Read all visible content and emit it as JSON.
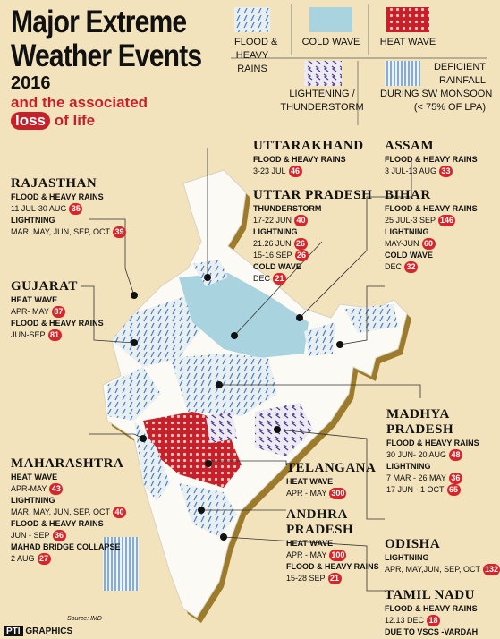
{
  "header": {
    "title_lines": [
      "Major Extreme",
      "Weather Events"
    ],
    "year": "2016",
    "subtitle": "and the associated",
    "loss": "loss",
    "of_life": "of life"
  },
  "legend": [
    {
      "lines": [
        "FLOOD &",
        "HEAVY",
        "RAINS"
      ]
    },
    {
      "lines": [
        "COLD WAVE"
      ]
    },
    {
      "lines": [
        "HEAT WAVE"
      ]
    },
    {
      "lines": [
        "LIGHTENING /",
        "THUNDERSTORM"
      ]
    },
    {
      "lines": [
        "DEFICIENT",
        "RAINFALL",
        "DURING SW MONSOON",
        "(< 75% OF LPA)"
      ]
    }
  ],
  "regions": [
    {
      "name_lines": [
        "RAJASTHAN"
      ],
      "events": [
        {
          "label": "FLOOD & HEAVY RAINS",
          "entries": [
            {
              "date": "11 JUL-30 AUG",
              "deaths": 35
            }
          ]
        },
        {
          "label": "LIGHTNING",
          "entries": [
            {
              "date": "MAR, MAY, JUN, SEP, OCT",
              "deaths": 39
            }
          ]
        }
      ]
    },
    {
      "name_lines": [
        "GUJARAT"
      ],
      "events": [
        {
          "label": "HEAT WAVE",
          "entries": [
            {
              "date": "APR- MAY",
              "deaths": 87
            }
          ]
        },
        {
          "label": "FLOOD & HEAVY RAINS",
          "entries": [
            {
              "date": "JUN-SEP",
              "deaths": 81
            }
          ]
        }
      ]
    },
    {
      "name_lines": [
        "MAHARASHTRA"
      ],
      "events": [
        {
          "label": "HEAT WAVE",
          "entries": [
            {
              "date": "APR-MAY",
              "deaths": 43
            }
          ]
        },
        {
          "label": "LIGHTNING",
          "entries": [
            {
              "date": "MAR, MAY, JUN, SEP, OCT",
              "deaths": 40
            }
          ]
        },
        {
          "label": "FLOOD & HEAVY RAINS",
          "entries": [
            {
              "date": "JUN - SEP",
              "deaths": 36
            }
          ]
        },
        {
          "label": "MAHAD BRIDGE COLLAPSE",
          "entries": [
            {
              "date": "2 AUG",
              "deaths": 27
            }
          ]
        }
      ]
    },
    {
      "name_lines": [
        "UTTARAKHAND"
      ],
      "events": [
        {
          "label": "FLOOD & HEAVY RAINS",
          "entries": [
            {
              "date": "3-23 JUL",
              "deaths": 46
            }
          ]
        }
      ]
    },
    {
      "name_lines": [
        "UTTAR PRADESH"
      ],
      "events": [
        {
          "label": "THUNDERSTORM",
          "entries": [
            {
              "date": "17-22 JUN",
              "deaths": 40
            }
          ]
        },
        {
          "label": "LIGHTNING",
          "entries": [
            {
              "date": "21.26 JUN",
              "deaths": 26
            },
            {
              "date": "15-16 SEP",
              "deaths": 26
            }
          ]
        },
        {
          "label": "COLD WAVE",
          "entries": [
            {
              "date": "DEC",
              "deaths": 21
            }
          ]
        }
      ]
    },
    {
      "name_lines": [
        "ASSAM"
      ],
      "events": [
        {
          "label": "FLOOD & HEAVY RAINS",
          "entries": [
            {
              "date": "3 JUL-13 AUG",
              "deaths": 33
            }
          ]
        }
      ]
    },
    {
      "name_lines": [
        "BIHAR"
      ],
      "events": [
        {
          "label": "FLOOD & HEAVY RAINS",
          "entries": [
            {
              "date": "25 JUL-3 SEP",
              "deaths": 146
            }
          ]
        },
        {
          "label": "LIGHTNING",
          "entries": [
            {
              "date": "MAY-JUN",
              "deaths": 60
            }
          ]
        },
        {
          "label": "COLD WAVE",
          "entries": [
            {
              "date": "DEC",
              "deaths": 32
            }
          ]
        }
      ]
    },
    {
      "name_lines": [
        "MADHYA",
        "PRADESH"
      ],
      "events": [
        {
          "label": "FLOOD & HEAVY RAINS",
          "entries": [
            {
              "date": "30 JUN- 20 AUG",
              "deaths": 48
            }
          ]
        },
        {
          "label": "LIGHTNING",
          "entries": [
            {
              "date": "7 MAR - 26 MAY",
              "deaths": 36
            },
            {
              "date": "17 JUN - 1 OCT",
              "deaths": 65
            }
          ]
        }
      ]
    },
    {
      "name_lines": [
        "TELANGANA"
      ],
      "events": [
        {
          "label": "HEAT WAVE",
          "entries": [
            {
              "date": "APR - MAY",
              "deaths": 300
            }
          ]
        }
      ]
    },
    {
      "name_lines": [
        "ANDHRA",
        "PRADESH"
      ],
      "events": [
        {
          "label": "HEAT WAVE",
          "entries": [
            {
              "date": "APR - MAY",
              "deaths": 100
            }
          ]
        },
        {
          "label": "FLOOD & HEAVY RAINS",
          "entries": [
            {
              "date": "15-28 SEP",
              "deaths": 21
            }
          ]
        }
      ]
    },
    {
      "name_lines": [
        "ODISHA"
      ],
      "events": [
        {
          "label": "LIGHTNING",
          "entries": [
            {
              "date": "APR, MAY,JUN, SEP, OCT",
              "deaths": 132
            }
          ]
        }
      ]
    },
    {
      "name_lines": [
        "TAMIL NADU"
      ],
      "events": [
        {
          "label": "FLOOD & HEAVY RAINS",
          "entries": [
            {
              "date": "12.13 DEC",
              "deaths": 18
            }
          ]
        }
      ],
      "note": "DUE TO VSCS -VARDAH"
    }
  ],
  "footer": {
    "source": "Source: IMD",
    "agency": "PTI",
    "graphics": "GRAPHICS"
  }
}
